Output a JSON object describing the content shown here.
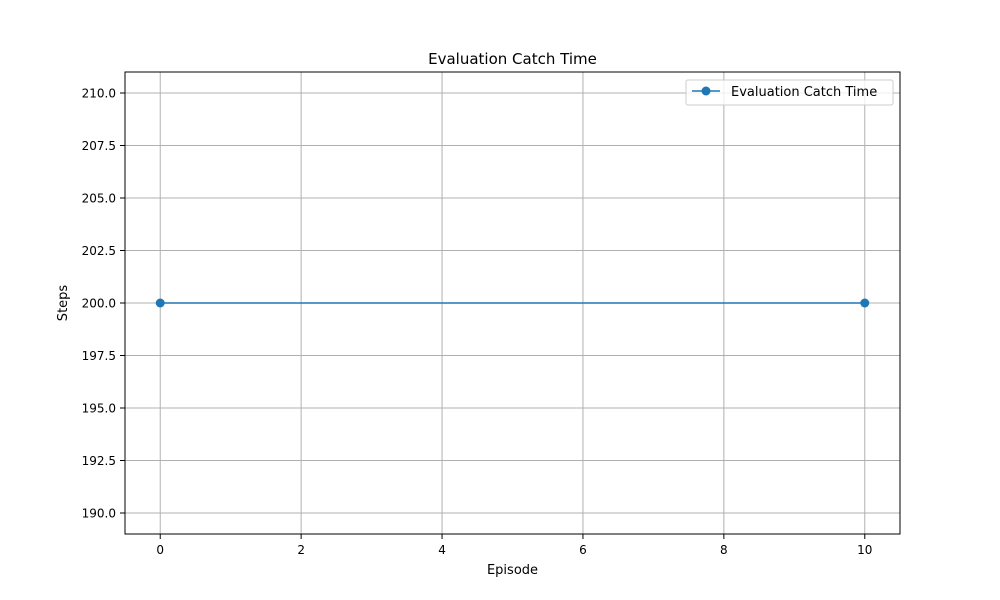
{
  "chart_data": {
    "type": "line",
    "title": "Evaluation Catch Time",
    "xlabel": "Episode",
    "ylabel": "Steps",
    "xlim": [
      -0.5,
      10.5
    ],
    "ylim": [
      189,
      211
    ],
    "x_ticks": [
      0,
      2,
      4,
      6,
      8,
      10
    ],
    "x_tick_labels": [
      "0",
      "2",
      "4",
      "6",
      "8",
      "10"
    ],
    "y_ticks": [
      190.0,
      192.5,
      195.0,
      197.5,
      200.0,
      202.5,
      205.0,
      207.5,
      210.0
    ],
    "y_tick_labels": [
      "190.0",
      "192.5",
      "195.0",
      "197.5",
      "200.0",
      "202.5",
      "205.0",
      "207.5",
      "210.0"
    ],
    "grid": true,
    "legend_position": "top-right",
    "series": [
      {
        "name": "Evaluation Catch Time",
        "x": [
          0,
          10
        ],
        "values": [
          200,
          200
        ],
        "color": "#1f77b4",
        "marker": "circle"
      }
    ]
  }
}
